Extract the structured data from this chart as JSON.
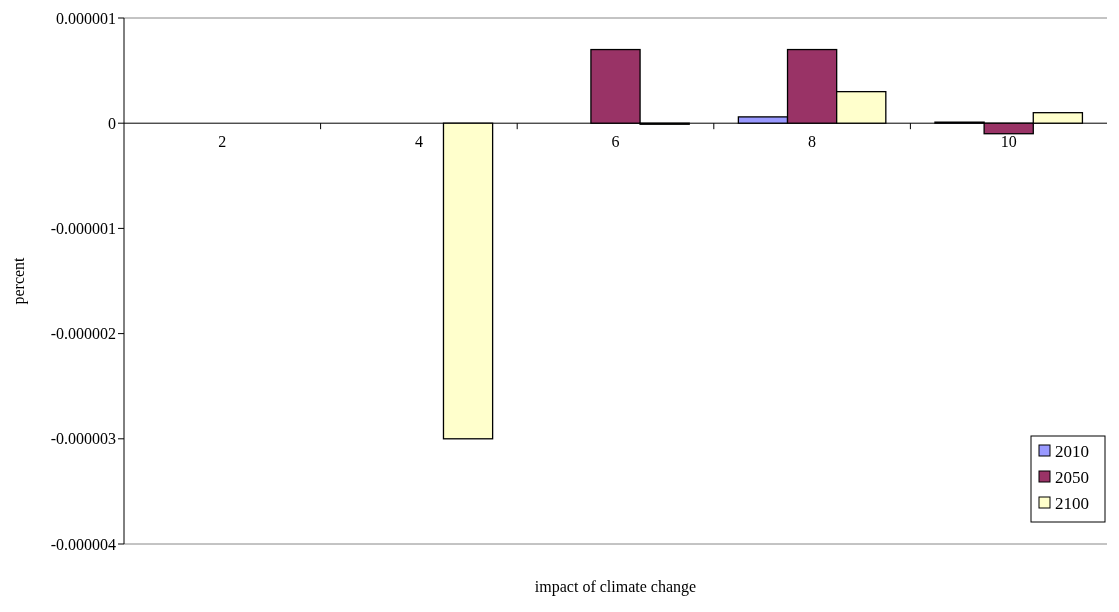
{
  "chart_data": {
    "type": "bar",
    "xlabel": "impact of climate change",
    "ylabel": "percent",
    "categories": [
      "2",
      "4",
      "6",
      "8",
      "10"
    ],
    "series": [
      {
        "name": "2010",
        "color": "#9999ff",
        "values": [
          0,
          0,
          0,
          6e-08,
          1e-08
        ]
      },
      {
        "name": "2050",
        "color": "#993366",
        "values": [
          0,
          0,
          7e-07,
          7e-07,
          -1e-07
        ]
      },
      {
        "name": "2100",
        "color": "#ffffcc",
        "values": [
          0,
          -3e-06,
          -1e-08,
          3e-07,
          1e-07
        ]
      }
    ],
    "ylim": [
      -4e-06,
      1e-06
    ],
    "yticks": [
      {
        "value": -4e-06,
        "label": "-0.000004"
      },
      {
        "value": -3e-06,
        "label": "-0.000003"
      },
      {
        "value": -2e-06,
        "label": "-0.000002"
      },
      {
        "value": -1e-06,
        "label": "-0.000001"
      },
      {
        "value": 0,
        "label": "0"
      },
      {
        "value": 1e-06,
        "label": "0.000001"
      }
    ],
    "legend": "bottom right",
    "grid": false
  }
}
